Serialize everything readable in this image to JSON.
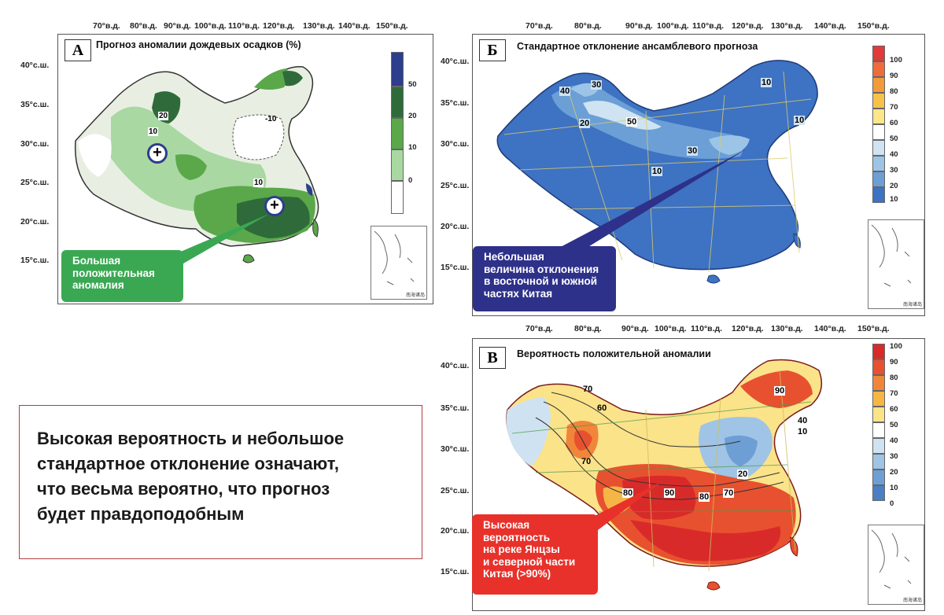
{
  "longitudes": [
    "70°в.д.",
    "80°в.д.",
    "90°в.д.",
    "100°в.д.",
    "110°в.д.",
    "120°в.д.",
    "130°в.д.",
    "140°в.д.",
    "150°в.д."
  ],
  "latitudes": [
    "40°с.ш.",
    "35°с.ш.",
    "30°с.ш.",
    "25°с.ш.",
    "20°с.ш.",
    "15°с.ш."
  ],
  "panel_a": {
    "letter": "А",
    "title": "Прогноз аномалии дождевых осадков (%)",
    "legend": [
      {
        "label": "50",
        "color": "#2c3e8c"
      },
      {
        "label": "20",
        "color": "#2f6b3a"
      },
      {
        "label": "10",
        "color": "#5aa84a"
      },
      {
        "label": "0",
        "color": "#a9d8a2"
      },
      {
        "label": "",
        "color": "#ffffff"
      }
    ],
    "contour_labels": [
      "20",
      "10",
      "-10",
      "10"
    ],
    "marker_symbol": "+",
    "callout": [
      "Большая",
      "положительная",
      "аномалия"
    ],
    "callout_color": "#3aa853",
    "inset_caption": "南海诸岛"
  },
  "panel_b": {
    "letter": "Б",
    "title": "Стандартное отклонение ансамблевого прогноза",
    "legend": [
      {
        "label": "100",
        "color": "#e03a3a"
      },
      {
        "label": "90",
        "color": "#ee6b3c"
      },
      {
        "label": "80",
        "color": "#f39a3a"
      },
      {
        "label": "70",
        "color": "#f7c24a"
      },
      {
        "label": "60",
        "color": "#fbe78a"
      },
      {
        "label": "50",
        "color": "#ffffff"
      },
      {
        "label": "40",
        "color": "#cfe3f2"
      },
      {
        "label": "30",
        "color": "#9cc4e6"
      },
      {
        "label": "20",
        "color": "#6b9fd6"
      },
      {
        "label": "10",
        "color": "#3e72c2"
      }
    ],
    "contour_labels": [
      "30",
      "40",
      "20",
      "50",
      "30",
      "10",
      "10",
      "10"
    ],
    "callout": [
      "Небольшая",
      "величина отклонения",
      "в восточной и южной",
      "частях Китая"
    ],
    "callout_color": "#2e3189",
    "inset_caption": "南海诸岛"
  },
  "panel_c": {
    "letter": "В",
    "title": "Вероятность положительной аномалии",
    "legend": [
      {
        "label": "100",
        "color": "#d92a2a"
      },
      {
        "label": "90",
        "color": "#e8512f"
      },
      {
        "label": "80",
        "color": "#f0863a"
      },
      {
        "label": "70",
        "color": "#f6b646"
      },
      {
        "label": "60",
        "color": "#fbe38a"
      },
      {
        "label": "50",
        "color": "#ffffff"
      },
      {
        "label": "40",
        "color": "#cfe2f1"
      },
      {
        "label": "30",
        "color": "#9fc4e5"
      },
      {
        "label": "20",
        "color": "#6d9fd4"
      },
      {
        "label": "10",
        "color": "#4b7fc4"
      },
      {
        "label": "0",
        "color": "#ffffff"
      }
    ],
    "contour_labels": [
      "70",
      "60",
      "70",
      "80",
      "90",
      "80",
      "70",
      "90",
      "40",
      "10",
      "20"
    ],
    "callout": [
      "Высокая",
      "вероятность",
      "на реке Янцзы",
      "и северной части",
      "Китая (>90%)"
    ],
    "callout_color": "#e8312b",
    "inset_caption": "南海诸岛"
  },
  "summary": {
    "lines": [
      "Высокая вероятность и небольшое",
      "стандартное отклонение означают,",
      "что весьма вероятно, что прогноз",
      "будет правдоподобным"
    ],
    "border_color": "#b04040"
  }
}
